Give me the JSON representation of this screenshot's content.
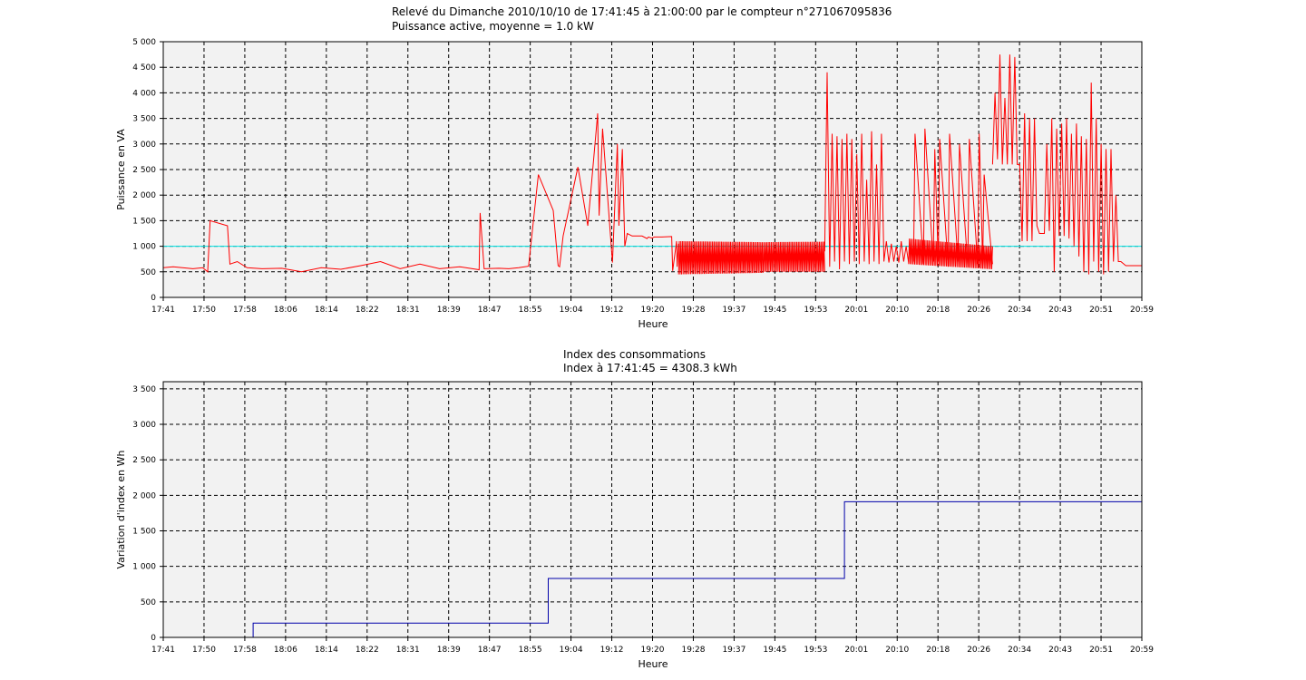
{
  "chart_data": [
    {
      "type": "line",
      "title": "Relevé du Dimanche 2010/10/10 de 17:41:45 à 21:00:00 par le compteur n°271067095836",
      "subtitle": "Puissance active, moyenne = 1.0 kW",
      "xlabel": "Heure",
      "ylabel": "Puissance en VA",
      "x_tick_labels": [
        "17:41",
        "17:50",
        "17:58",
        "18:06",
        "18:14",
        "18:22",
        "18:31",
        "18:39",
        "18:47",
        "18:55",
        "19:04",
        "19:12",
        "19:20",
        "19:28",
        "19:37",
        "19:45",
        "19:53",
        "20:01",
        "20:10",
        "20:18",
        "20:26",
        "20:34",
        "20:43",
        "20:51",
        "20:59"
      ],
      "y_tick_labels": [
        "0",
        "500",
        "1 000",
        "1 500",
        "2 000",
        "2 500",
        "3 000",
        "3 500",
        "4 000",
        "4 500",
        "5 000"
      ],
      "xlim_minutes": [
        0,
        198.25
      ],
      "ylim": [
        0,
        5000
      ],
      "grid": true,
      "mean_line": {
        "value": 1000,
        "color": "#00e5e5"
      },
      "series": [
        {
          "color": "#ff0000",
          "x_minutes": [
            0,
            2,
            6,
            8,
            9,
            9.5,
            13,
            13.5,
            15,
            17,
            20,
            24,
            28,
            32,
            36,
            40,
            44,
            48,
            52,
            56,
            60,
            64,
            64.2,
            65,
            68,
            70,
            72,
            74,
            76,
            79,
            80,
            80.3,
            81,
            84,
            86,
            88,
            88.3,
            89,
            91,
            92,
            92.3,
            93,
            93.5,
            94,
            95,
            95.5,
            96,
            97,
            98,
            98.3,
            99,
            99.5,
            100,
            100.5,
            101,
            103,
            103.2,
            104,
            104.1,
            104.4
          ],
          "values": [
            580,
            600,
            560,
            580,
            500,
            1500,
            1400,
            650,
            700,
            580,
            560,
            570,
            500,
            580,
            550,
            620,
            700,
            560,
            650,
            560,
            600,
            540,
            1650,
            560,
            570,
            560,
            580,
            610,
            2400,
            1700,
            620,
            600,
            1200,
            2550,
            1400,
            3600,
            1600,
            3300,
            680,
            3000,
            1400,
            2900,
            1000,
            1250,
            1200,
            1200,
            1200,
            1200,
            1150,
            1180,
            1160,
            1180,
            1180,
            1180,
            1180,
            1190,
            520,
            1100,
            600,
            1050
          ]
        },
        {
          "color": "#ff0000",
          "band": true,
          "x_minutes": [
            104.4,
            121.5
          ],
          "low": [
            450,
            480
          ],
          "high": [
            1100,
            1080
          ]
        },
        {
          "color": "#ff0000",
          "band": true,
          "x_minutes": [
            121.5,
            134
          ],
          "low": [
            500,
            500
          ],
          "high": [
            1080,
            1090
          ]
        },
        {
          "color": "#ff0000",
          "x_minutes": [
            134,
            134.5,
            135,
            135.5,
            136,
            136.5,
            137,
            137.5,
            138,
            138.5,
            139,
            139.5,
            140,
            140.5,
            141,
            141.5,
            142,
            142.5,
            143,
            143.5,
            144,
            144.5,
            145,
            145.5,
            146,
            146.5,
            147,
            147.5,
            148,
            148.5,
            149,
            149.5,
            150,
            150.5,
            151
          ],
          "values": [
            900,
            4400,
            600,
            3200,
            700,
            3150,
            550,
            3100,
            700,
            3200,
            650,
            3100,
            700,
            2800,
            650,
            3200,
            700,
            2300,
            650,
            3250,
            700,
            2600,
            650,
            3200,
            700,
            1100,
            680,
            1050,
            700,
            1000,
            680,
            1100,
            700,
            1000,
            680
          ]
        },
        {
          "color": "#ff0000",
          "band": true,
          "x_minutes": [
            151,
            168
          ],
          "low": [
            650,
            550
          ],
          "high": [
            1150,
            1000
          ]
        },
        {
          "color": "#ff0000",
          "x_minutes": [
            152,
            152.3,
            154,
            154.3,
            156,
            156.3,
            157,
            157.3,
            159,
            159.3,
            161,
            161.3,
            163,
            163.3,
            165,
            165.3,
            166,
            166.3,
            168
          ],
          "values": [
            700,
            3200,
            650,
            3300,
            700,
            2900,
            700,
            3100,
            600,
            3200,
            700,
            3000,
            600,
            3100,
            650,
            3200,
            700,
            2400,
            650
          ]
        },
        {
          "color": "#ff0000",
          "x_minutes": [
            168,
            168.5,
            169,
            169.5,
            170,
            170.5,
            171,
            171.5,
            172,
            172.5,
            173,
            173.5,
            174,
            174.5,
            175,
            175.5,
            176,
            176.5,
            177,
            177.5,
            178,
            178.5,
            179,
            179.5,
            180,
            180.5,
            181,
            181.5,
            182,
            182.5,
            183,
            183.5,
            184,
            184.5,
            185,
            185.5,
            186,
            186.5,
            187,
            187.5,
            188,
            188.5,
            189,
            189.5,
            190,
            190.5,
            191,
            191.5,
            192,
            192.5,
            193,
            193.5,
            194,
            195,
            198.25
          ],
          "values": [
            2600,
            4000,
            2700,
            4750,
            2600,
            3900,
            2600,
            4750,
            2600,
            4700,
            2600,
            2600,
            1100,
            3600,
            1100,
            3500,
            1100,
            3500,
            1400,
            1250,
            1250,
            1250,
            3000,
            1300,
            3500,
            500,
            3300,
            1200,
            3400,
            1200,
            3500,
            1150,
            3200,
            1000,
            3400,
            800,
            3150,
            500,
            3100,
            450,
            4200,
            700,
            3500,
            500,
            3000,
            450,
            2900,
            500,
            2900,
            700,
            2000,
            700,
            700,
            620,
            620
          ]
        }
      ]
    },
    {
      "type": "line",
      "title": "Index des consommations",
      "subtitle": "Index à 17:41:45 = 4308.3 kWh",
      "xlabel": "Heure",
      "ylabel": "Variation d'index en Wh",
      "x_tick_labels": [
        "17:41",
        "17:50",
        "17:58",
        "18:06",
        "18:14",
        "18:22",
        "18:31",
        "18:39",
        "18:47",
        "18:55",
        "19:04",
        "19:12",
        "19:20",
        "19:28",
        "19:37",
        "19:45",
        "19:53",
        "20:01",
        "20:10",
        "20:18",
        "20:26",
        "20:34",
        "20:43",
        "20:51",
        "20:59"
      ],
      "y_tick_labels": [
        "0",
        "500",
        "1 000",
        "1 500",
        "2 000",
        "2 500",
        "3 000",
        "3 500"
      ],
      "xlim_minutes": [
        0,
        198.25
      ],
      "ylim": [
        0,
        3600
      ],
      "grid": true,
      "series": [
        {
          "color": "#0000aa",
          "step": true,
          "x_minutes": [
            18.2,
            18.2,
            78,
            78,
            138,
            138,
            198.25
          ],
          "values": [
            0,
            200,
            200,
            830,
            830,
            1910,
            1910
          ]
        }
      ]
    }
  ]
}
